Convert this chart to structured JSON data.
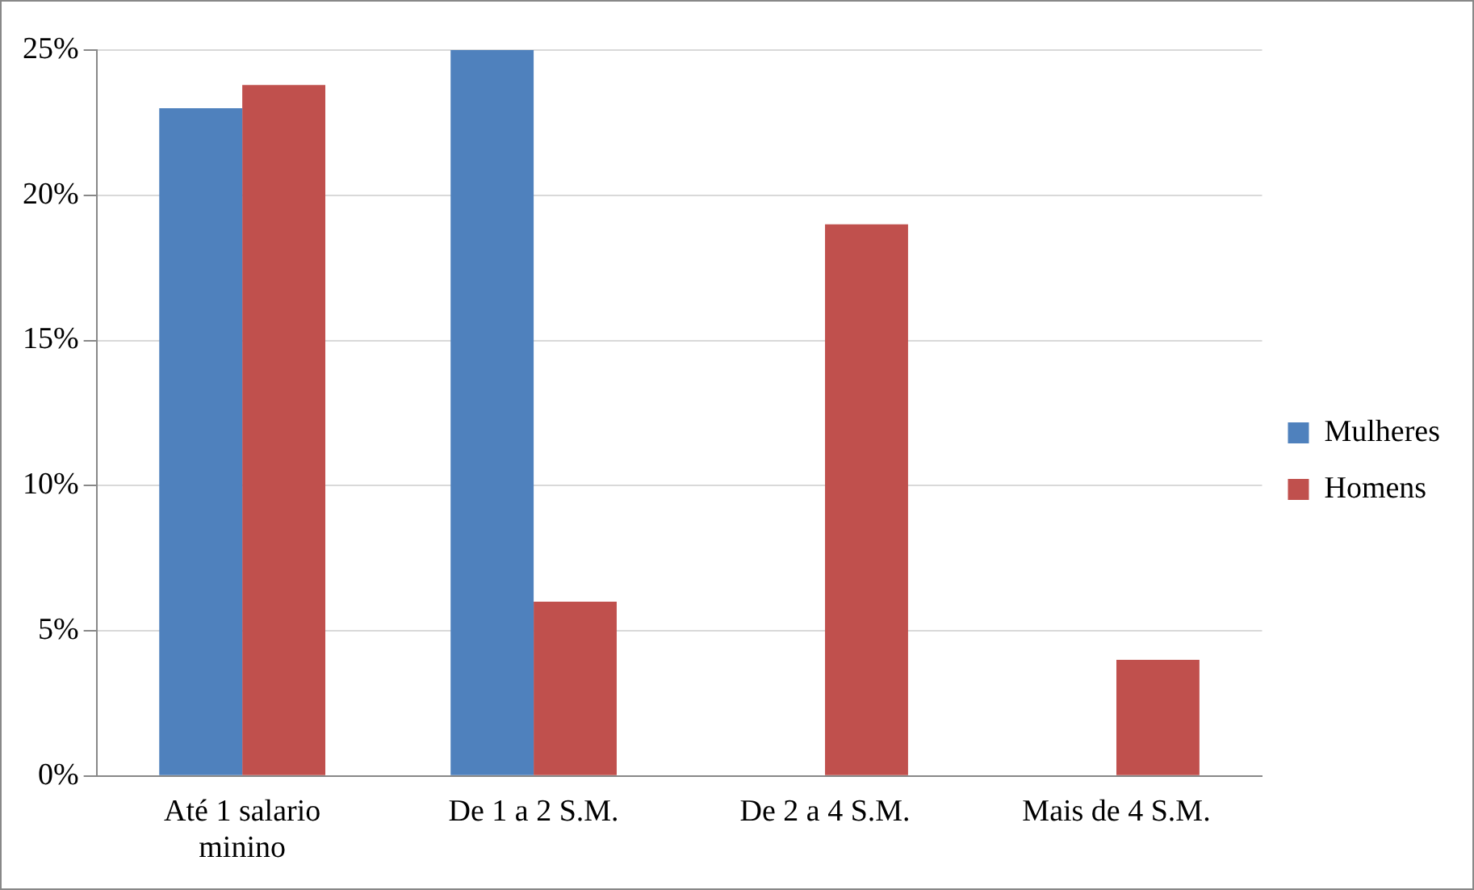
{
  "chart_data": {
    "type": "bar",
    "categories": [
      "Até 1 salario minino",
      "De 1 a 2 S.M.",
      "De 2 a 4 S.M.",
      "Mais de 4 S.M."
    ],
    "series": [
      {
        "name": "Mulheres",
        "color": "#4f81bd",
        "values": [
          23,
          25,
          0,
          0
        ]
      },
      {
        "name": "Homens",
        "color": "#c0504d",
        "values": [
          23.8,
          6,
          19,
          4
        ]
      }
    ],
    "ylim": [
      0,
      25
    ],
    "yticks": [
      {
        "value": 0,
        "label": "0%"
      },
      {
        "value": 5,
        "label": "5%"
      },
      {
        "value": 10,
        "label": "10%"
      },
      {
        "value": 15,
        "label": "15%"
      },
      {
        "value": 20,
        "label": "20%"
      },
      {
        "value": 25,
        "label": "25%"
      }
    ],
    "grid": "y",
    "legend": "right"
  }
}
